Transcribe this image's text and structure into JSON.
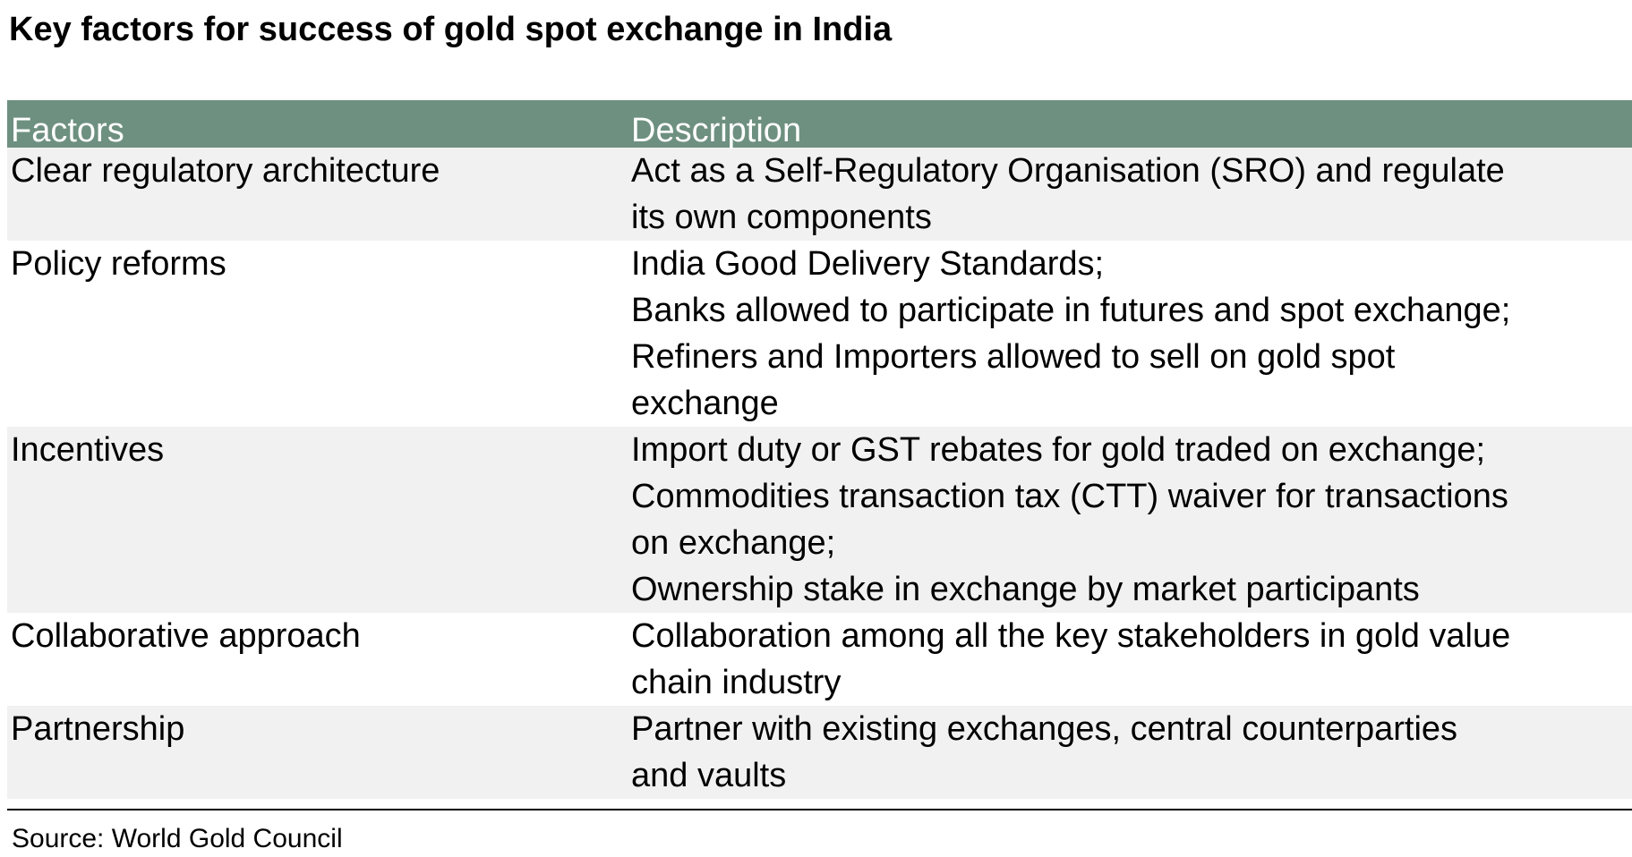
{
  "title": "Key factors for success of gold spot exchange in India",
  "table": {
    "headers": {
      "factors": "Factors",
      "description": "Description"
    },
    "rows": [
      {
        "factor": "Clear regulatory architecture",
        "lines": [
          "Act as a Self-Regulatory Organisation (SRO) and regulate",
          "its own components"
        ]
      },
      {
        "factor": "Policy reforms",
        "lines": [
          "India Good Delivery Standards;",
          "Banks allowed to participate in futures and spot exchange;",
          "Refiners and Importers allowed to sell on gold spot",
          "exchange"
        ]
      },
      {
        "factor": "Incentives",
        "lines": [
          "Import duty or GST rebates for gold traded on exchange;",
          "Commodities transaction tax (CTT) waiver for transactions",
          "on exchange;",
          "Ownership stake in exchange by market participants"
        ]
      },
      {
        "factor": "Collaborative approach",
        "lines": [
          "Collaboration among all the key stakeholders in gold value",
          "chain industry"
        ]
      },
      {
        "factor": "Partnership",
        "lines": [
          "Partner with existing exchanges, central counterparties",
          "and vaults"
        ]
      }
    ]
  },
  "source": "Source: World Gold Council"
}
